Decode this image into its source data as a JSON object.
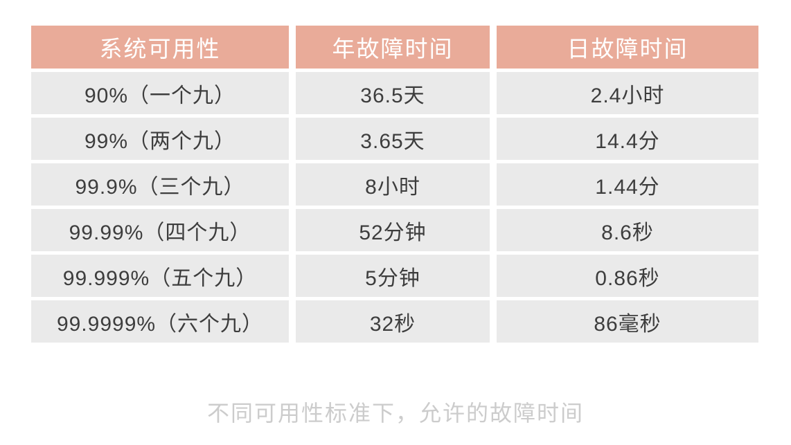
{
  "chart_data": {
    "type": "table",
    "columns": [
      "系统可用性",
      "年故障时间",
      "日故障时间"
    ],
    "rows": [
      [
        "90%（一个九）",
        "36.5天",
        "2.4小时"
      ],
      [
        "99%（两个九）",
        "3.65天",
        "14.4分"
      ],
      [
        "99.9%（三个九）",
        "8小时",
        "1.44分"
      ],
      [
        "99.99%（四个九）",
        "52分钟",
        "8.6秒"
      ],
      [
        "99.999%（五个九）",
        "5分钟",
        "0.86秒"
      ],
      [
        "99.9999%（六个九）",
        "32秒",
        "86毫秒"
      ]
    ],
    "title": "不同可用性标准下，允许的故障时间",
    "legend_position": "none",
    "grid": false
  },
  "table": {
    "headers": [
      "系统可用性",
      "年故障时间",
      "日故障时间"
    ],
    "rows": [
      [
        "90%（一个九）",
        "36.5天",
        "2.4小时"
      ],
      [
        "99%（两个九）",
        "3.65天",
        "14.4分"
      ],
      [
        "99.9%（三个九）",
        "8小时",
        "1.44分"
      ],
      [
        "99.99%（四个九）",
        "52分钟",
        "8.6秒"
      ],
      [
        "99.999%（五个九）",
        "5分钟",
        "0.86秒"
      ],
      [
        "99.9999%（六个九）",
        "32秒",
        "86毫秒"
      ]
    ]
  },
  "caption": "不同可用性标准下，允许的故障时间",
  "colors": {
    "background": "#ffffff",
    "header_bg": "#e9ab99",
    "header_text": "#ffffff",
    "row_bg": "#eaeaea",
    "cell_text": "#3d3d3d",
    "caption_text": "#cccccc"
  }
}
